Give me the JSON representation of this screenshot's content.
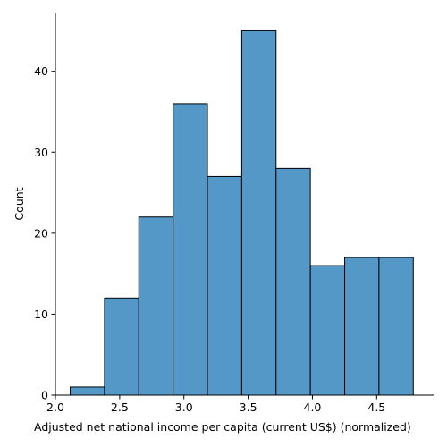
{
  "chart_data": {
    "type": "bar",
    "subtype": "histogram",
    "title": "",
    "xlabel": "Adjusted net national income per capita (current US$) (normalized)",
    "ylabel": "Count",
    "bins": [
      {
        "start": 2.115,
        "end": 2.382,
        "count": 1
      },
      {
        "start": 2.382,
        "end": 2.649,
        "count": 12
      },
      {
        "start": 2.649,
        "end": 2.916,
        "count": 22
      },
      {
        "start": 2.916,
        "end": 3.183,
        "count": 36
      },
      {
        "start": 3.183,
        "end": 3.45,
        "count": 27
      },
      {
        "start": 3.45,
        "end": 3.717,
        "count": 45
      },
      {
        "start": 3.717,
        "end": 3.984,
        "count": 28
      },
      {
        "start": 3.984,
        "end": 4.251,
        "count": 16
      },
      {
        "start": 4.251,
        "end": 4.518,
        "count": 17
      },
      {
        "start": 4.518,
        "end": 4.785,
        "count": 17
      }
    ],
    "xlim": [
      2.0,
      4.95
    ],
    "ylim": [
      0,
      47.25
    ],
    "xticks": [
      "2.0",
      "2.5",
      "3.0",
      "3.5",
      "4.0",
      "4.5"
    ],
    "yticks": [
      "0",
      "10",
      "20",
      "30",
      "40"
    ],
    "grid": false,
    "legend": "none",
    "colors": {
      "bar_fill": "#5498c7",
      "bar_edge": "#000000",
      "axis": "#000000"
    }
  }
}
